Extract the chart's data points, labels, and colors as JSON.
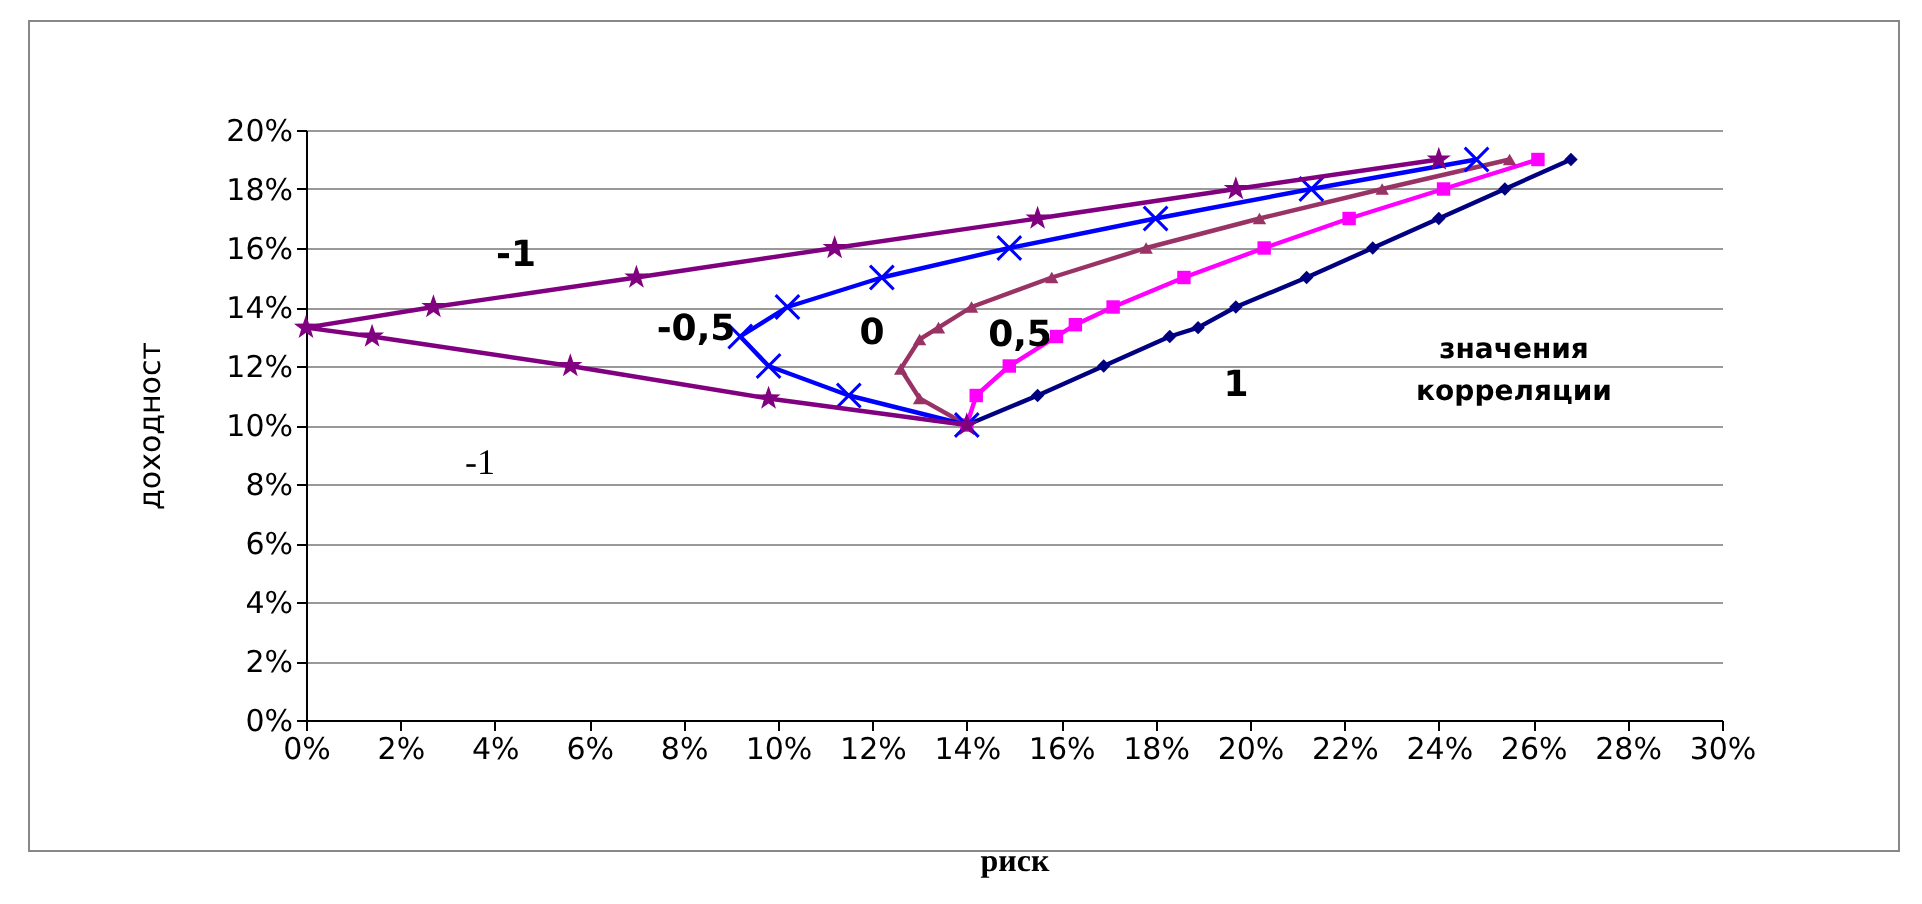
{
  "chart_data": {
    "type": "line",
    "xlabel": "риск",
    "ylabel": "доходност",
    "xlim": [
      0,
      30
    ],
    "ylim": [
      0,
      20
    ],
    "xticks": [
      {
        "value": 0,
        "label": "0%"
      },
      {
        "value": 2,
        "label": "2%"
      },
      {
        "value": 4,
        "label": "4%"
      },
      {
        "value": 6,
        "label": "6%"
      },
      {
        "value": 8,
        "label": "8%"
      },
      {
        "value": 10,
        "label": "10%"
      },
      {
        "value": 12,
        "label": "12%"
      },
      {
        "value": 14,
        "label": "14%"
      },
      {
        "value": 16,
        "label": "16%"
      },
      {
        "value": 18,
        "label": "18%"
      },
      {
        "value": 20,
        "label": "20%"
      },
      {
        "value": 22,
        "label": "22%"
      },
      {
        "value": 24,
        "label": "24%"
      },
      {
        "value": 26,
        "label": "26%"
      },
      {
        "value": 28,
        "label": "28%"
      },
      {
        "value": 30,
        "label": "30%"
      }
    ],
    "yticks": [
      {
        "value": 0,
        "label": "0%"
      },
      {
        "value": 2,
        "label": "2%"
      },
      {
        "value": 4,
        "label": "4%"
      },
      {
        "value": 6,
        "label": "6%"
      },
      {
        "value": 8,
        "label": "8%"
      },
      {
        "value": 10,
        "label": "10%"
      },
      {
        "value": 12,
        "label": "12%"
      },
      {
        "value": 14,
        "label": "14%"
      },
      {
        "value": 16,
        "label": "16%"
      },
      {
        "value": 18,
        "label": "18%"
      },
      {
        "value": 20,
        "label": "20%"
      }
    ],
    "grid": "y",
    "series": [
      {
        "name": "1",
        "color": "#000080",
        "marker": "diamond",
        "x": [
          14,
          15.5,
          16.9,
          18.3,
          18.9,
          19.7,
          21.2,
          22.6,
          24.0,
          25.4,
          26.8
        ],
        "values": [
          10,
          11,
          12,
          13,
          13.3,
          14,
          15,
          16,
          17,
          18,
          19
        ]
      },
      {
        "name": "0,5",
        "color": "#ff00ff",
        "marker": "square",
        "x": [
          14,
          14.2,
          14.9,
          15.9,
          16.3,
          17.1,
          18.6,
          20.3,
          22.1,
          24.1,
          26.1
        ],
        "values": [
          10,
          11,
          12,
          13,
          13.4,
          14,
          15,
          16,
          17,
          18,
          19
        ]
      },
      {
        "name": "0",
        "color": "#993366",
        "marker": "triangle",
        "x": [
          14,
          13.0,
          12.6,
          13.0,
          13.4,
          14.1,
          15.8,
          17.8,
          20.2,
          22.8,
          25.5
        ],
        "values": [
          10,
          10.9,
          11.9,
          12.9,
          13.3,
          14,
          15,
          16,
          17,
          18,
          19
        ]
      },
      {
        "name": "-0,5",
        "color": "#0000ff",
        "marker": "cross",
        "x": [
          14,
          11.5,
          9.8,
          9.2,
          10.2,
          12.2,
          14.9,
          18.0,
          21.3,
          24.8
        ],
        "values": [
          10,
          11,
          12,
          13,
          14,
          15,
          16,
          17,
          18,
          19
        ]
      },
      {
        "name": "-1",
        "color": "#800080",
        "marker": "star",
        "x": [
          14,
          9.8,
          5.6,
          1.4,
          0,
          2.7,
          7.0,
          11.2,
          15.5,
          19.7,
          24.0
        ],
        "values": [
          10,
          10.9,
          12,
          13,
          13.3,
          14,
          15,
          16,
          17,
          18,
          19
        ]
      }
    ],
    "annotations": [
      "значения корреляции",
      "-1"
    ]
  }
}
